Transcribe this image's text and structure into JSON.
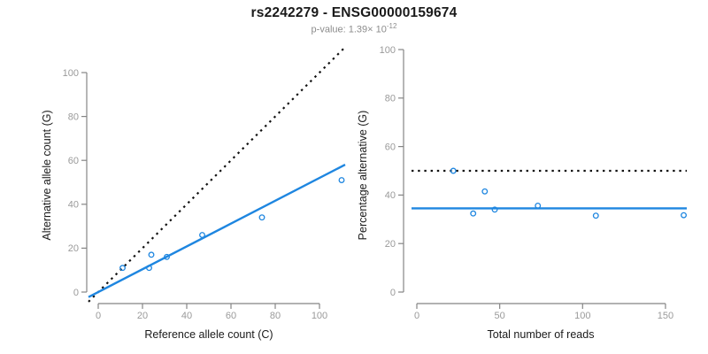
{
  "header": {
    "title": "rs2242279 - ENSG00000159674",
    "pvalue_prefix": "p-value: 1.39× 10",
    "pvalue_exponent": "-12"
  },
  "colors": {
    "accent_blue": "#1E86E0",
    "dotted_black": "#111111",
    "axis_gray": "#858585",
    "tick_label_gray": "#9A9A9A",
    "text_dark": "#1A1A1A",
    "subtitle_gray": "#8C8C8C"
  },
  "chart_data": [
    {
      "type": "scatter",
      "name": "allele-count-scatter",
      "xlabel": "Reference allele count (C)",
      "ylabel": "Alternative allele count (G)",
      "xlim": [
        0,
        110
      ],
      "ylim": [
        0,
        110
      ],
      "xticks": [
        0,
        20,
        40,
        60,
        80,
        100
      ],
      "yticks": [
        0,
        20,
        40,
        60,
        80,
        100
      ],
      "grid": false,
      "points": [
        [
          11,
          11
        ],
        [
          23,
          11
        ],
        [
          24,
          17
        ],
        [
          31,
          16
        ],
        [
          47,
          26
        ],
        [
          74,
          34
        ],
        [
          110,
          51
        ]
      ],
      "lines": [
        {
          "name": "identity-dotted-line",
          "type": "abline",
          "intercept": 0,
          "slope": 1,
          "style": "dotted",
          "color": "#111111"
        },
        {
          "name": "fit-line",
          "type": "abline",
          "intercept": 0,
          "slope": 0.52,
          "style": "solid",
          "color": "#1E86E0"
        }
      ]
    },
    {
      "type": "scatter",
      "name": "percentage-alternative-scatter",
      "xlabel": "Total number of reads",
      "ylabel": "Percentage alternative (G)",
      "xlim": [
        0,
        165
      ],
      "ylim": [
        0,
        100
      ],
      "xticks": [
        0,
        50,
        100,
        150
      ],
      "yticks": [
        0,
        20,
        40,
        60,
        80,
        100
      ],
      "grid": false,
      "points": [
        [
          22,
          50
        ],
        [
          34,
          32.4
        ],
        [
          41,
          41.5
        ],
        [
          47,
          34
        ],
        [
          73,
          35.6
        ],
        [
          108,
          31.5
        ],
        [
          161,
          31.7
        ]
      ],
      "lines": [
        {
          "name": "null-50pct-dotted-line",
          "type": "hline",
          "y": 50,
          "style": "dotted",
          "color": "#111111"
        },
        {
          "name": "mean-percentage-line",
          "type": "hline",
          "y": 34.5,
          "style": "solid",
          "color": "#1E86E0"
        }
      ]
    }
  ]
}
